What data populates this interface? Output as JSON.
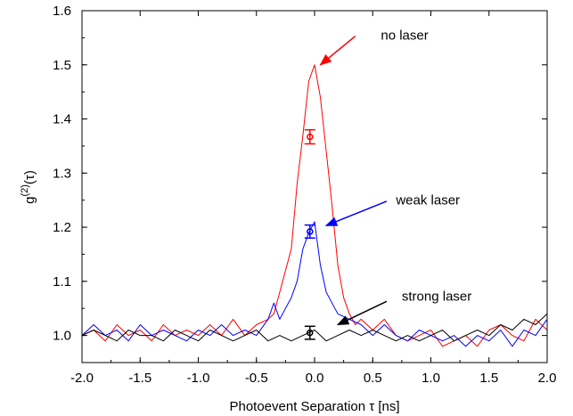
{
  "chart_data": {
    "type": "line",
    "xlabel": "Photoevent Separation τ [ns]",
    "ylabel": {
      "base": "g",
      "sup": "(2)",
      "arg": "(τ)"
    },
    "xlim": [
      -2.0,
      2.0
    ],
    "ylim": [
      0.95,
      1.6
    ],
    "x_ticks": [
      -2.0,
      -1.5,
      -1.0,
      -0.5,
      0.0,
      0.5,
      1.0,
      1.5,
      2.0
    ],
    "x_tick_labels": [
      "-2.0",
      "-1.5",
      "-1.0",
      "-0.5",
      "0.0",
      "0.5",
      "1.0",
      "1.5",
      "2.0"
    ],
    "y_ticks": [
      1.0,
      1.1,
      1.2,
      1.3,
      1.4,
      1.5,
      1.6
    ],
    "y_tick_labels": [
      "1.0",
      "1.1",
      "1.2",
      "1.3",
      "1.4",
      "1.5",
      "1.6"
    ],
    "grid": false,
    "series": [
      {
        "color": "#ff0000",
        "x": [
          -2.0,
          -1.9,
          -1.8,
          -1.7,
          -1.6,
          -1.5,
          -1.4,
          -1.3,
          -1.2,
          -1.1,
          -1.0,
          -0.9,
          -0.8,
          -0.7,
          -0.6,
          -0.5,
          -0.4,
          -0.35,
          -0.3,
          -0.25,
          -0.2,
          -0.15,
          -0.1,
          -0.05,
          0.0,
          0.05,
          0.1,
          0.15,
          0.2,
          0.25,
          0.3,
          0.35,
          0.4,
          0.5,
          0.6,
          0.7,
          0.8,
          0.9,
          1.0,
          1.1,
          1.2,
          1.3,
          1.4,
          1.5,
          1.6,
          1.7,
          1.8,
          1.9,
          2.0
        ],
        "values": [
          1.0,
          1.01,
          0.99,
          1.02,
          1.0,
          1.01,
          0.99,
          1.02,
          1.0,
          1.01,
          1.0,
          1.02,
          1.0,
          1.03,
          1.0,
          1.02,
          1.03,
          1.04,
          1.08,
          1.12,
          1.16,
          1.28,
          1.37,
          1.47,
          1.5,
          1.44,
          1.34,
          1.24,
          1.13,
          1.07,
          1.04,
          1.02,
          1.03,
          1.01,
          1.03,
          1.0,
          0.99,
          1.0,
          1.01,
          0.98,
          0.99,
          1.0,
          0.98,
          1.01,
          1.02,
          1.0,
          0.99,
          1.03,
          1.01
        ]
      },
      {
        "color": "#0000ff",
        "x": [
          -2.0,
          -1.9,
          -1.8,
          -1.7,
          -1.6,
          -1.5,
          -1.4,
          -1.3,
          -1.2,
          -1.1,
          -1.0,
          -0.9,
          -0.8,
          -0.7,
          -0.6,
          -0.5,
          -0.4,
          -0.35,
          -0.3,
          -0.25,
          -0.2,
          -0.15,
          -0.1,
          -0.05,
          0.0,
          0.05,
          0.1,
          0.15,
          0.2,
          0.3,
          0.4,
          0.5,
          0.6,
          0.7,
          0.8,
          0.9,
          1.0,
          1.1,
          1.2,
          1.3,
          1.4,
          1.5,
          1.6,
          1.7,
          1.8,
          1.9,
          2.0
        ],
        "values": [
          1.0,
          1.02,
          1.0,
          1.01,
          0.99,
          1.02,
          1.0,
          1.01,
          1.0,
          0.99,
          1.01,
          1.0,
          1.02,
          1.0,
          1.01,
          1.0,
          1.03,
          1.06,
          1.03,
          1.05,
          1.07,
          1.1,
          1.16,
          1.19,
          1.21,
          1.13,
          1.08,
          1.06,
          1.04,
          1.03,
          1.02,
          1.0,
          1.02,
          1.0,
          0.99,
          1.01,
          1.0,
          0.99,
          1.0,
          0.98,
          1.0,
          0.99,
          1.01,
          0.98,
          1.01,
          1.0,
          1.03
        ]
      },
      {
        "color": "#000000",
        "x": [
          -2.0,
          -1.9,
          -1.8,
          -1.7,
          -1.6,
          -1.5,
          -1.4,
          -1.3,
          -1.2,
          -1.1,
          -1.0,
          -0.9,
          -0.8,
          -0.7,
          -0.6,
          -0.5,
          -0.4,
          -0.3,
          -0.2,
          -0.1,
          0.0,
          0.1,
          0.2,
          0.3,
          0.4,
          0.5,
          0.6,
          0.7,
          0.8,
          0.9,
          1.0,
          1.1,
          1.2,
          1.3,
          1.4,
          1.5,
          1.6,
          1.7,
          1.8,
          1.9,
          2.0
        ],
        "values": [
          1.0,
          1.01,
          1.0,
          0.99,
          1.01,
          1.0,
          1.0,
          0.99,
          1.01,
          1.0,
          0.99,
          1.01,
          1.0,
          0.99,
          1.0,
          1.01,
          0.99,
          1.0,
          0.99,
          1.0,
          1.01,
          0.99,
          1.0,
          1.01,
          1.0,
          1.01,
          1.0,
          0.99,
          1.0,
          0.99,
          1.0,
          1.01,
          0.99,
          1.0,
          1.01,
          1.0,
          1.02,
          1.01,
          1.03,
          1.02,
          1.04
        ]
      }
    ],
    "error_bars": [
      {
        "color": "#ff0000",
        "x": -0.04,
        "y": 1.367,
        "err": 0.013
      },
      {
        "color": "#0000ff",
        "x": -0.04,
        "y": 1.192,
        "err": 0.012
      },
      {
        "color": "#000000",
        "x": -0.04,
        "y": 1.005,
        "err": 0.012
      }
    ],
    "annotations": [
      {
        "text": "no laser",
        "color": "#ff0000",
        "x": 0.57,
        "y": 1.555,
        "from": [
          0.35,
          1.553
        ],
        "to": [
          0.05,
          1.5
        ]
      },
      {
        "text": "weak laser",
        "color": "#0000ff",
        "x": 0.7,
        "y": 1.25,
        "from": [
          0.62,
          1.248
        ],
        "to": [
          0.1,
          1.203
        ]
      },
      {
        "text": "strong laser",
        "color": "#000000",
        "x": 0.75,
        "y": 1.073,
        "from": [
          0.62,
          1.063
        ],
        "to": [
          0.2,
          1.02
        ]
      }
    ]
  }
}
